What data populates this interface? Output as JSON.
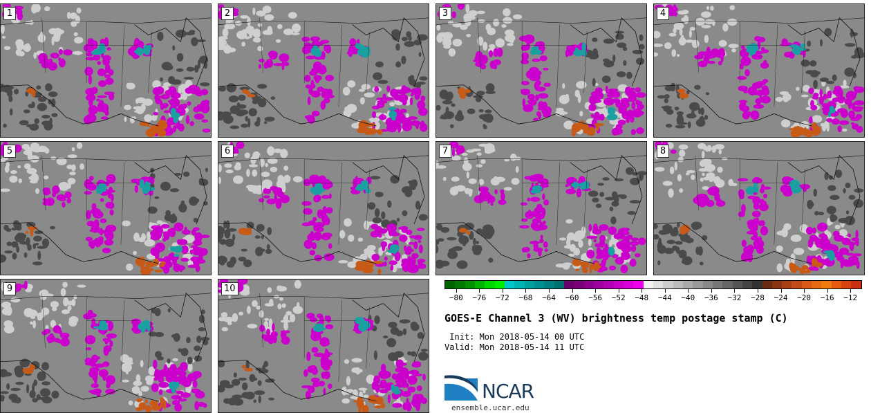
{
  "panels": [
    {
      "label": "1"
    },
    {
      "label": "2"
    },
    {
      "label": "3"
    },
    {
      "label": "4"
    },
    {
      "label": "5"
    },
    {
      "label": "6"
    },
    {
      "label": "7"
    },
    {
      "label": "8"
    },
    {
      "label": "9"
    },
    {
      "label": "10"
    }
  ],
  "colorbar": {
    "ticks": [
      "−80",
      "−76",
      "−72",
      "−68",
      "−64",
      "−60",
      "−56",
      "−52",
      "−48",
      "−44",
      "−40",
      "−36",
      "−32",
      "−28",
      "−24",
      "−20",
      "−16",
      "−12"
    ],
    "tick_values": [
      -80,
      -76,
      -72,
      -68,
      -64,
      -60,
      -56,
      -52,
      -48,
      -44,
      -40,
      -36,
      -32,
      -28,
      -24,
      -20,
      -16,
      -12
    ],
    "range": [
      -82,
      -10
    ],
    "colors": [
      "#006400",
      "#007a00",
      "#009000",
      "#00b400",
      "#00d800",
      "#00ee00",
      "#00c8c8",
      "#00b4b4",
      "#00a0a0",
      "#009090",
      "#008080",
      "#007070",
      "#6a006a",
      "#7a007a",
      "#8c008c",
      "#a000a0",
      "#b400b4",
      "#c800c8",
      "#dc00dc",
      "#ee00ee",
      "#f2f2f2",
      "#e0e0e0",
      "#cccccc",
      "#bbbbbb",
      "#aaaaaa",
      "#999999",
      "#888888",
      "#777777",
      "#666666",
      "#555555",
      "#444444",
      "#333333",
      "#6b2a12",
      "#8a3414",
      "#a84016",
      "#c24c18",
      "#d85a14",
      "#e86a10",
      "#f07a10",
      "#e85a10",
      "#d84410",
      "#c83010"
    ]
  },
  "title": "GOES-E Channel 3 (WV) brightness temp postage stamp (C)",
  "init": " Init: Mon 2018-05-14 00 UTC",
  "valid": "Valid: Mon 2018-05-14 11 UTC",
  "logo": {
    "text": "NCAR",
    "url": "ensemble.ucar.edu"
  },
  "map_colors": {
    "background": "#8a8a8a",
    "light": "#cfcfcf",
    "dark": "#4a4a4a",
    "magenta": "#cc00cc",
    "cyan": "#1aa0a0",
    "orange": "#c85a18",
    "borders": "#111111"
  }
}
